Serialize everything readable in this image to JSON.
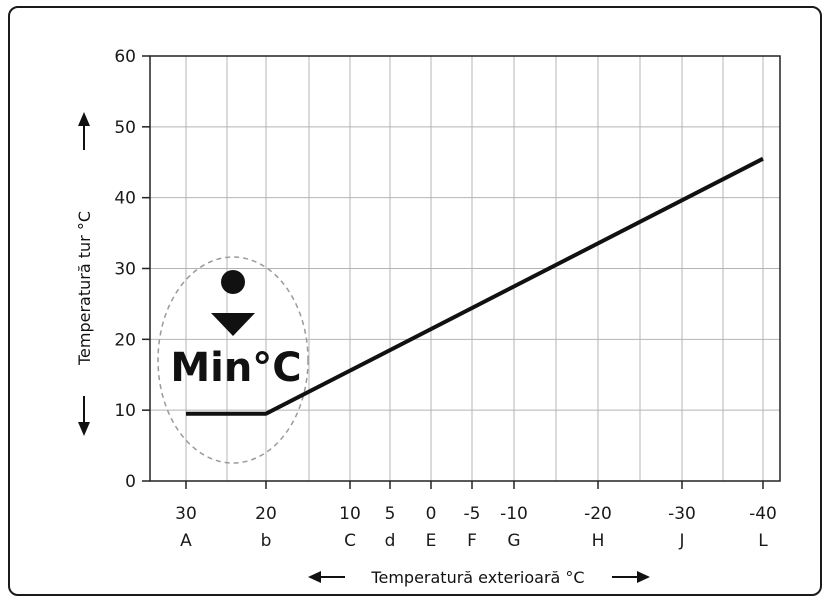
{
  "chart_data": {
    "type": "line",
    "ylabel": "Temperatură tur °C",
    "xlabel": "Temperatură exterioară °C",
    "ylim": [
      0,
      60
    ],
    "y_ticks": [
      0,
      10,
      20,
      30,
      40,
      50,
      60
    ],
    "x_ticks": [
      {
        "value": "30",
        "letter": "A"
      },
      {
        "value": "20",
        "letter": "b"
      },
      {
        "value": "10",
        "letter": "C"
      },
      {
        "value": "5",
        "letter": "d"
      },
      {
        "value": "0",
        "letter": "E"
      },
      {
        "value": "-5",
        "letter": "F"
      },
      {
        "value": "-10",
        "letter": "G"
      },
      {
        "value": "-20",
        "letter": "H"
      },
      {
        "value": "-30",
        "letter": "J"
      },
      {
        "value": "-40",
        "letter": "L"
      }
    ],
    "grid": true,
    "series": [
      {
        "x": [
          "30",
          "20",
          "-40"
        ],
        "y": [
          9.5,
          9.5,
          45.5
        ]
      }
    ],
    "annotation": {
      "text": "Min°C"
    },
    "colors": {
      "line": "#111111",
      "grid": "#b4b4b4",
      "ellipse": "#9a9a9a"
    }
  }
}
